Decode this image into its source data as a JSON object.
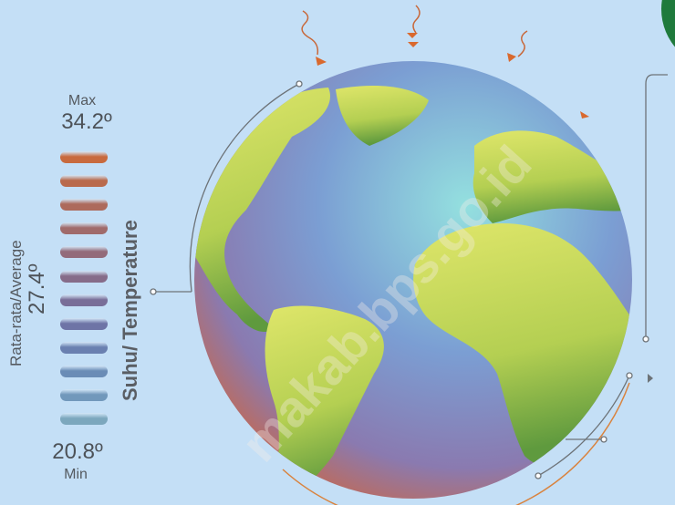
{
  "legend": {
    "max_label": "Max",
    "max_value": "34.2º",
    "avg_label": "Rata-rata/Average",
    "avg_value": "27.4º",
    "min_value": "20.8º",
    "min_label": "Min",
    "title": "Suhu/ Temperature"
  },
  "scale_colors": [
    "#c86a3e",
    "#b96a4c",
    "#ad6a5c",
    "#a06b6b",
    "#936b7a",
    "#866c89",
    "#796e98",
    "#6e74a6",
    "#6a80b0",
    "#6a8cb6",
    "#7198bb",
    "#7ca7bd"
  ],
  "watermark": "makab.bps.go.id",
  "colors": {
    "background": "#c4dff6",
    "land": "#cddd5a",
    "ocean": "#7a98cc",
    "accent_orange": "#d9692e"
  }
}
